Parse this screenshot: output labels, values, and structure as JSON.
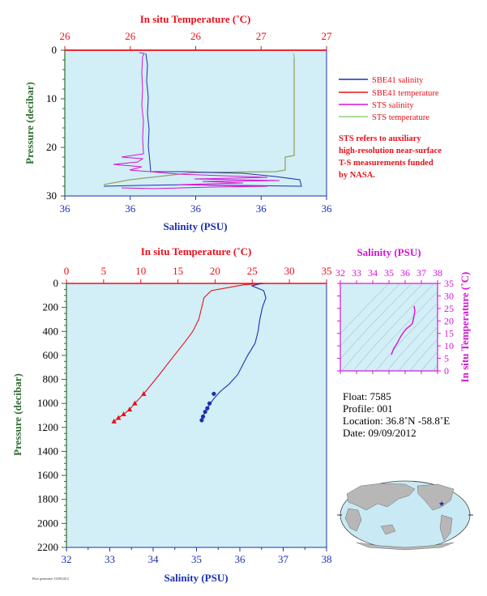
{
  "colors": {
    "red": "#e8101a",
    "blue": "#1d2fb0",
    "magenta": "#d614d6",
    "green": "#8fcf7a",
    "olive": "#9a9a6a",
    "axis_green": "#2e6e2e",
    "plot_bg": "#d2eef6",
    "land": "#b7b7b7",
    "ocean": "#c9eaf4"
  },
  "chart_data": [
    {
      "type": "line",
      "x2label": "In situ Temperature (˚C)",
      "x2ticks": [
        "26",
        "26",
        "26",
        "27",
        "27"
      ],
      "xlabel": "Salinity (PSU)",
      "xticks": [
        "36",
        "36",
        "36",
        "36",
        "36"
      ],
      "ylabel": "Pressure (decibar)",
      "yticks": [
        "0",
        "10",
        "20",
        "30"
      ],
      "ylim": [
        0,
        30
      ],
      "series": [
        {
          "name": "SBE41 salinity",
          "color": "#1d2fb0"
        },
        {
          "name": "SBE41 temperature",
          "color": "#e8101a"
        },
        {
          "name": "STS salinity",
          "color": "#d614d6"
        },
        {
          "name": "STS temperature",
          "color": "#8fcf7a"
        }
      ],
      "note": [
        "STS refers to auxiliary",
        "high-resolution near-surface",
        "T-S measurements funded",
        "by NASA."
      ]
    },
    {
      "type": "line",
      "x2label": "In situ Temperature (˚C)",
      "x2ticks": [
        "0",
        "5",
        "10",
        "15",
        "20",
        "25",
        "30",
        "35"
      ],
      "x2lim": [
        0,
        35
      ],
      "xlabel": "Salinity (PSU)",
      "xticks": [
        "32",
        "33",
        "34",
        "35",
        "36",
        "37",
        "38"
      ],
      "xlim": [
        32,
        38
      ],
      "ylabel": "Pressure (decibar)",
      "yticks": [
        "0",
        "200",
        "400",
        "600",
        "800",
        "1000",
        "1200",
        "1400",
        "1600",
        "1800",
        "2000",
        "2200"
      ],
      "ylim": [
        0,
        2200
      ],
      "series": [
        {
          "name": "temperature",
          "color": "#e8101a",
          "x": [
            26.6,
            24,
            19.5,
            18.5,
            18.2,
            17.8,
            17,
            15.8,
            14.5,
            12.5,
            10.4,
            9.2,
            8.5,
            7.7,
            7.0,
            6.4
          ],
          "y": [
            2,
            10,
            60,
            120,
            200,
            300,
            400,
            500,
            600,
            760,
            920,
            1000,
            1050,
            1090,
            1120,
            1150
          ]
        },
        {
          "name": "salinity",
          "color": "#1d2fb0",
          "x": [
            36.5,
            36.28,
            36.55,
            36.6,
            36.52,
            36.46,
            36.42,
            36.35,
            36.18,
            35.95,
            35.75,
            35.55,
            35.4,
            35.3,
            35.2,
            35.12
          ],
          "y": [
            0,
            20,
            60,
            120,
            200,
            300,
            400,
            500,
            600,
            760,
            840,
            900,
            960,
            1010,
            1070,
            1140
          ]
        },
        {
          "name": "temperature samples",
          "color": "#e8101a",
          "markers": "triangle",
          "x": [
            10.4,
            9.2,
            8.5,
            7.7,
            7.0,
            6.4
          ],
          "y": [
            920,
            1000,
            1050,
            1090,
            1120,
            1150
          ]
        },
        {
          "name": "salinity samples",
          "color": "#1d2fb0",
          "markers": "circle",
          "x": [
            35.4,
            35.3,
            35.25,
            35.2,
            35.15,
            35.12
          ],
          "y": [
            920,
            1000,
            1040,
            1070,
            1110,
            1140
          ]
        }
      ]
    },
    {
      "type": "scatter",
      "x2label": "Salinity (PSU)",
      "x2ticks": [
        "32",
        "33",
        "34",
        "35",
        "36",
        "37",
        "38"
      ],
      "xlim": [
        32,
        38
      ],
      "ylabel": "In situ Temperature (˚C)",
      "yticks": [
        "0",
        "5",
        "10",
        "15",
        "20",
        "25",
        "30",
        "35"
      ],
      "ylim": [
        0,
        35
      ],
      "series": [
        {
          "name": "T-S",
          "color": "#d614d6",
          "x": [
            36.55,
            36.6,
            36.52,
            36.45,
            36.3,
            36.1,
            35.9,
            35.7,
            35.5,
            35.3,
            35.15
          ],
          "y": [
            26,
            24,
            21,
            19,
            18,
            17,
            15.5,
            13.5,
            11,
            9,
            6.5
          ]
        }
      ]
    }
  ],
  "info": {
    "float": "Float: 7585",
    "profile": "Profile: 001",
    "location": "Location: 36.8˚N -58.8˚E",
    "date": "Date: 09/09/2012"
  },
  "footer": "Plots generated: 10/09/2012"
}
